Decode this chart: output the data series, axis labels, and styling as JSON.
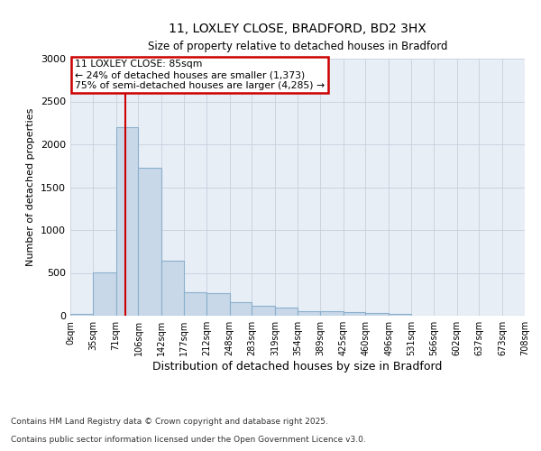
{
  "title1": "11, LOXLEY CLOSE, BRADFORD, BD2 3HX",
  "title2": "Size of property relative to detached houses in Bradford",
  "xlabel": "Distribution of detached houses by size in Bradford",
  "ylabel": "Number of detached properties",
  "bar_color": "#c8d8e8",
  "bar_edge_color": "#8ab0cc",
  "vline_color": "#cc0000",
  "vline_x": 85,
  "annotation_box_color": "#cc0000",
  "annotation_lines": [
    "11 LOXLEY CLOSE: 85sqm",
    "← 24% of detached houses are smaller (1,373)",
    "75% of semi-detached houses are larger (4,285) →"
  ],
  "bins": [
    0,
    35,
    71,
    106,
    142,
    177,
    212,
    248,
    283,
    319,
    354,
    389,
    425,
    460,
    496,
    531,
    566,
    602,
    637,
    673,
    708
  ],
  "bin_labels": [
    "0sqm",
    "35sqm",
    "71sqm",
    "106sqm",
    "142sqm",
    "177sqm",
    "212sqm",
    "248sqm",
    "283sqm",
    "319sqm",
    "354sqm",
    "389sqm",
    "425sqm",
    "460sqm",
    "496sqm",
    "531sqm",
    "566sqm",
    "602sqm",
    "637sqm",
    "673sqm",
    "708sqm"
  ],
  "bar_heights": [
    25,
    510,
    2200,
    1730,
    640,
    270,
    265,
    155,
    115,
    90,
    55,
    55,
    40,
    30,
    18,
    5,
    3,
    2,
    1,
    1
  ],
  "ylim": [
    0,
    3000
  ],
  "yticks": [
    0,
    500,
    1000,
    1500,
    2000,
    2500,
    3000
  ],
  "plot_bg_color": "#e8eef6",
  "grid_color": "#c8d0dc",
  "footer1": "Contains HM Land Registry data © Crown copyright and database right 2025.",
  "footer2": "Contains public sector information licensed under the Open Government Licence v3.0."
}
